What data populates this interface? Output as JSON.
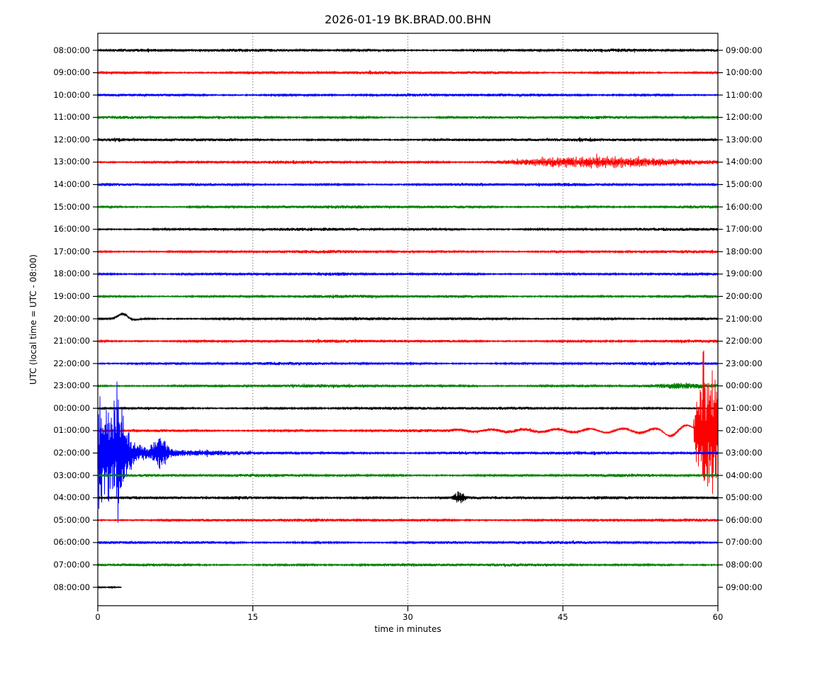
{
  "chart_data": {
    "type": "line",
    "subtype": "seismogram-helicorder-dayplot",
    "title": "2026-01-19 BK.BRAD.00.BHN",
    "xlabel": "time in minutes",
    "ylabel": "UTC (local time = UTC - 08:00)",
    "x_ticks": [
      0,
      15,
      30,
      45,
      60
    ],
    "x_range": [
      0,
      60
    ],
    "grid": "vertical-dotted-at-15-30-45",
    "legend": "none",
    "trace_color_cycle": [
      "#000000",
      "#ff0000",
      "#0000ff",
      "#008000"
    ],
    "rows": [
      {
        "utc": "08:00:00",
        "right": "09:00:00",
        "color": "#000000",
        "end_min": 60,
        "events": []
      },
      {
        "utc": "09:00:00",
        "right": "10:00:00",
        "color": "#ff0000",
        "end_min": 60,
        "events": []
      },
      {
        "utc": "10:00:00",
        "right": "11:00:00",
        "color": "#0000ff",
        "end_min": 60,
        "events": []
      },
      {
        "utc": "11:00:00",
        "right": "12:00:00",
        "color": "#008000",
        "end_min": 60,
        "events": []
      },
      {
        "utc": "12:00:00",
        "right": "13:00:00",
        "color": "#000000",
        "end_min": 60,
        "events": []
      },
      {
        "utc": "13:00:00",
        "right": "14:00:00",
        "color": "#ff0000",
        "end_min": 60,
        "events": [
          {
            "type": "tremor",
            "start": 37,
            "end": 60,
            "amp": 4.5
          }
        ]
      },
      {
        "utc": "14:00:00",
        "right": "15:00:00",
        "color": "#0000ff",
        "end_min": 60,
        "events": []
      },
      {
        "utc": "15:00:00",
        "right": "16:00:00",
        "color": "#008000",
        "end_min": 60,
        "events": []
      },
      {
        "utc": "16:00:00",
        "right": "17:00:00",
        "color": "#000000",
        "end_min": 60,
        "events": []
      },
      {
        "utc": "17:00:00",
        "right": "18:00:00",
        "color": "#ff0000",
        "end_min": 60,
        "events": []
      },
      {
        "utc": "18:00:00",
        "right": "19:00:00",
        "color": "#0000ff",
        "end_min": 60,
        "events": []
      },
      {
        "utc": "19:00:00",
        "right": "20:00:00",
        "color": "#008000",
        "end_min": 60,
        "events": []
      },
      {
        "utc": "20:00:00",
        "right": "21:00:00",
        "color": "#000000",
        "end_min": 60,
        "events": [
          {
            "type": "bump",
            "c": 2.4,
            "w": 0.45,
            "amp": 7
          },
          {
            "type": "bump",
            "c": 3.4,
            "w": 0.5,
            "amp": -1.5
          }
        ]
      },
      {
        "utc": "21:00:00",
        "right": "22:00:00",
        "color": "#ff0000",
        "end_min": 60,
        "events": []
      },
      {
        "utc": "22:00:00",
        "right": "23:00:00",
        "color": "#0000ff",
        "end_min": 60,
        "events": []
      },
      {
        "utc": "23:00:00",
        "right": "00:00:00",
        "color": "#008000",
        "end_min": 60,
        "events": [
          {
            "type": "swell",
            "c": 56.5,
            "w": 1.8,
            "amp": 2.2
          }
        ]
      },
      {
        "utc": "00:00:00",
        "right": "01:00:00",
        "color": "#000000",
        "end_min": 60,
        "events": []
      },
      {
        "utc": "01:00:00",
        "right": "02:00:00",
        "color": "#ff0000",
        "end_min": 60,
        "events": [
          {
            "type": "wander",
            "start": 34,
            "end": 57.6,
            "amp": 3.5,
            "period": 3.2
          },
          {
            "type": "bump",
            "c": 55.3,
            "w": 0.55,
            "amp": -5
          },
          {
            "type": "bump",
            "c": 56.7,
            "w": 0.6,
            "amp": 5
          },
          {
            "type": "burst",
            "start": 57.6,
            "end": 60,
            "amp": 85,
            "spike_amp": 115,
            "spike_prob": 0.18
          },
          {
            "type": "spike",
            "t": 58.65,
            "amp": 125
          }
        ]
      },
      {
        "utc": "02:00:00",
        "right": "03:00:00",
        "color": "#0000ff",
        "end_min": 60,
        "events": [
          {
            "type": "quake",
            "flat_end": 2.2,
            "flat_amp": 78,
            "tau": 0.6,
            "bump_c": 6.0,
            "bump_w": 0.55,
            "bump_a": 17,
            "coda_a": 6,
            "coda_tau": 3,
            "tail_a": 2.5,
            "tail_tau": 8,
            "spike_amp": 102,
            "spike_prob": 0.12
          }
        ]
      },
      {
        "utc": "03:00:00",
        "right": "04:00:00",
        "color": "#008000",
        "end_min": 60,
        "events": []
      },
      {
        "utc": "04:00:00",
        "right": "05:00:00",
        "color": "#000000",
        "end_min": 60,
        "events": [
          {
            "type": "swell",
            "c": 35,
            "w": 0.35,
            "amp": 8
          },
          {
            "type": "swell",
            "c": 35,
            "w": 1.4,
            "amp": 1.5
          }
        ]
      },
      {
        "utc": "05:00:00",
        "right": "06:00:00",
        "color": "#ff0000",
        "end_min": 60,
        "events": []
      },
      {
        "utc": "06:00:00",
        "right": "07:00:00",
        "color": "#0000ff",
        "end_min": 60,
        "events": []
      },
      {
        "utc": "07:00:00",
        "right": "08:00:00",
        "color": "#008000",
        "end_min": 60,
        "events": []
      },
      {
        "utc": "08:00:00",
        "right": "09:00:00",
        "color": "#000000",
        "end_min": 2.3,
        "events": []
      }
    ]
  }
}
